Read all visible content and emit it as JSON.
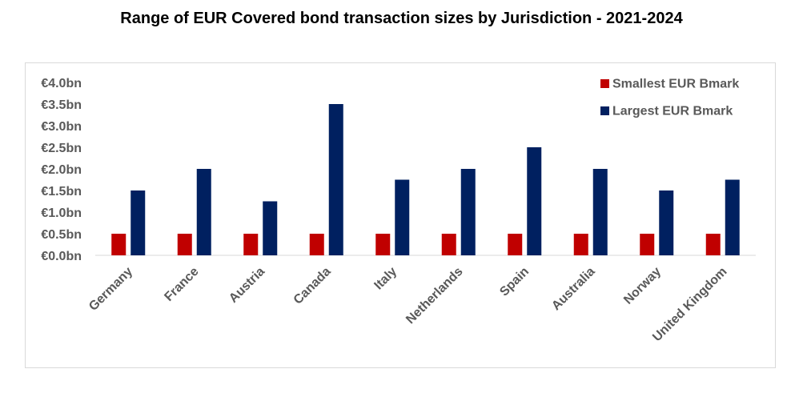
{
  "chart_data": {
    "type": "bar",
    "title": "Range of EUR Covered bond transaction sizes by Jurisdiction - 2021-2024",
    "xlabel": "",
    "ylabel": "",
    "categories": [
      "Germany",
      "France",
      "Austria",
      "Canada",
      "Italy",
      "Netherlands",
      "Spain",
      "Australia",
      "Norway",
      "United Kingdom"
    ],
    "series": [
      {
        "name": "Smallest EUR Bmark",
        "color": "#c00000",
        "values": [
          0.5,
          0.5,
          0.5,
          0.5,
          0.5,
          0.5,
          0.5,
          0.5,
          0.5,
          0.5
        ]
      },
      {
        "name": "Largest EUR Bmark",
        "color": "#002060",
        "values": [
          1.5,
          2.0,
          1.25,
          3.5,
          1.75,
          2.0,
          2.5,
          2.0,
          1.5,
          1.75
        ]
      }
    ],
    "ylim": [
      0,
      4.0
    ],
    "yticks": [
      "€0.0bn",
      "€0.5bn",
      "€1.0bn",
      "€1.5bn",
      "€2.0bn",
      "€2.5bn",
      "€3.0bn",
      "€3.5bn",
      "€4.0bn"
    ],
    "grid": false,
    "legend_position": "top-right"
  }
}
